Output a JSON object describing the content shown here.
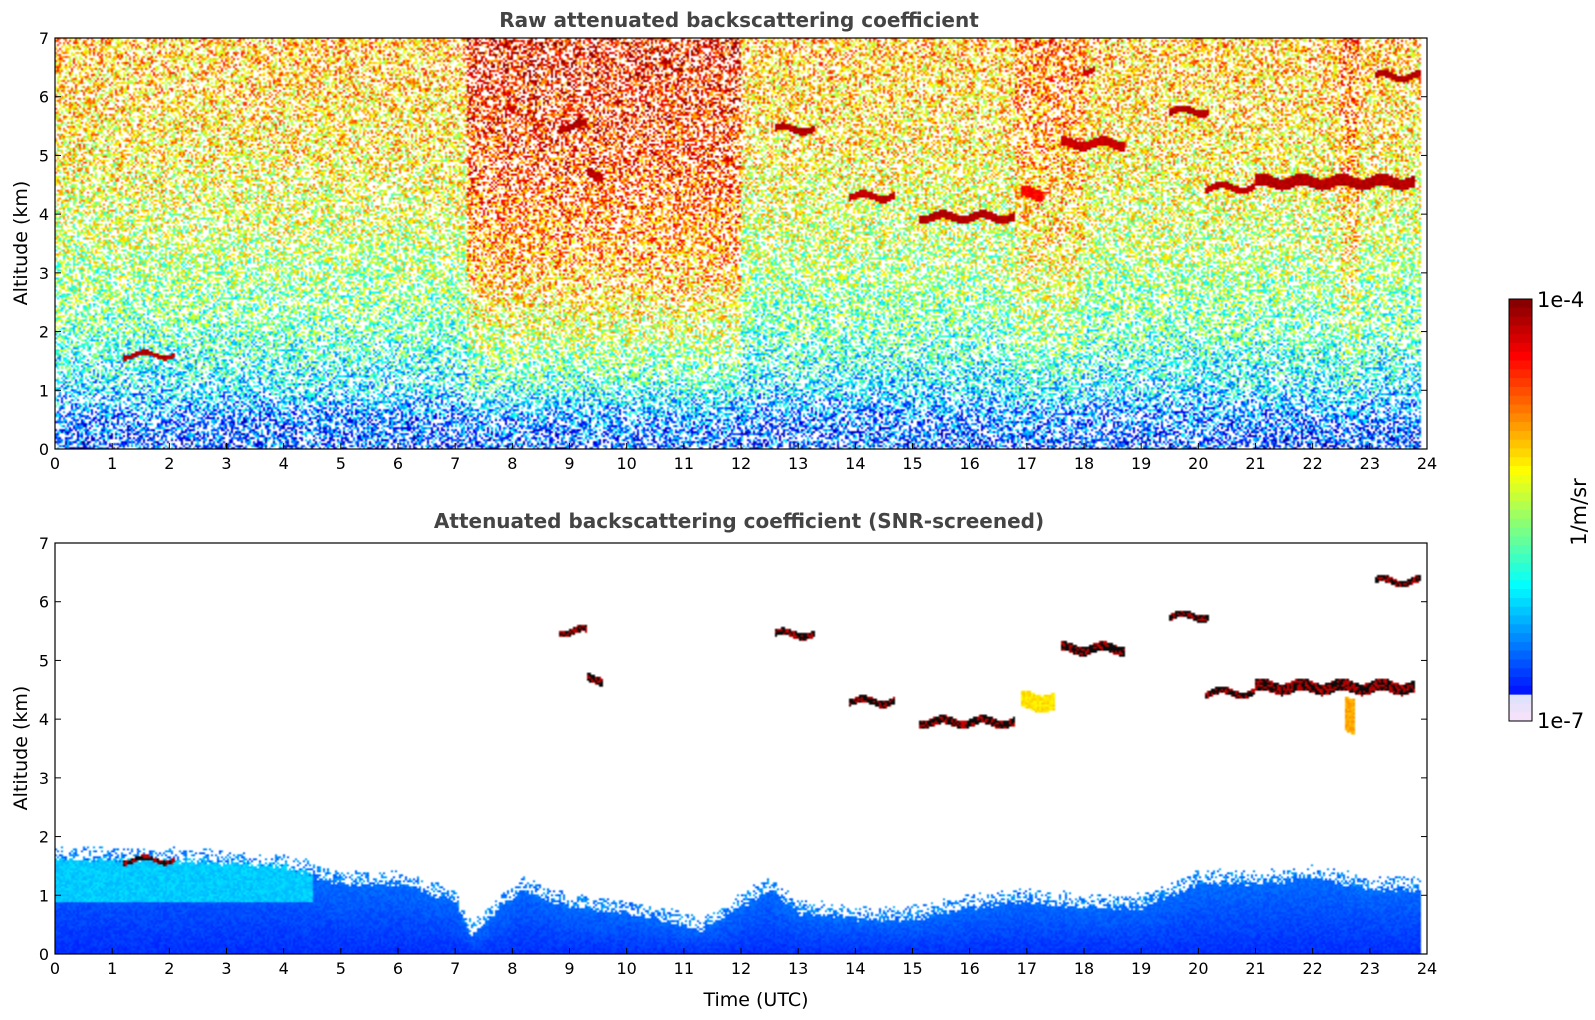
{
  "chart_data": [
    {
      "type": "heatmap",
      "title": "Raw attenuated backscattering coefficient",
      "xlabel": "",
      "ylabel": "Altitude (km)",
      "xlim": [
        0,
        24
      ],
      "ylim": [
        0,
        7
      ],
      "x_ticks": [
        "0",
        "1",
        "2",
        "3",
        "4",
        "5",
        "6",
        "7",
        "8",
        "9",
        "10",
        "11",
        "12",
        "13",
        "14",
        "15",
        "16",
        "17",
        "18",
        "19",
        "20",
        "21",
        "22",
        "23",
        "24"
      ],
      "y_ticks": [
        "0",
        "1",
        "2",
        "3",
        "4",
        "5",
        "6",
        "7"
      ],
      "grid": false,
      "background_level_by_altitude_km": [
        {
          "alt": 0.0,
          "level": 0.18
        },
        {
          "alt": 0.5,
          "level": 0.22
        },
        {
          "alt": 1.0,
          "level": 0.34
        },
        {
          "alt": 2.0,
          "level": 0.46
        },
        {
          "alt": 3.5,
          "level": 0.56
        },
        {
          "alt": 5.0,
          "level": 0.64
        },
        {
          "alt": 7.0,
          "level": 0.7
        }
      ],
      "layers": [
        {
          "t0": 1.2,
          "t1": 2.1,
          "alt": 1.6,
          "thick": 0.08,
          "level": 0.97
        },
        {
          "t0": 7.9,
          "t1": 8.05,
          "alt": 5.78,
          "thick": 0.12,
          "level": 0.95
        },
        {
          "t0": 8.8,
          "t1": 9.3,
          "alt": 5.5,
          "thick": 0.12,
          "level": 0.97
        },
        {
          "t0": 9.3,
          "t1": 9.6,
          "alt": 4.68,
          "thick": 0.14,
          "level": 0.97
        },
        {
          "t0": 12.6,
          "t1": 13.3,
          "alt": 5.45,
          "thick": 0.12,
          "level": 0.97
        },
        {
          "t0": 13.9,
          "t1": 14.7,
          "alt": 4.3,
          "thick": 0.12,
          "level": 0.96
        },
        {
          "t0": 15.1,
          "t1": 16.8,
          "alt": 3.95,
          "thick": 0.14,
          "level": 0.97
        },
        {
          "t0": 16.9,
          "t1": 17.3,
          "alt": 4.35,
          "thick": 0.2,
          "level": 0.9
        },
        {
          "t0": 17.6,
          "t1": 18.7,
          "alt": 5.2,
          "thick": 0.16,
          "level": 0.95
        },
        {
          "t0": 19.5,
          "t1": 20.2,
          "alt": 5.75,
          "thick": 0.12,
          "level": 0.97
        },
        {
          "t0": 20.1,
          "t1": 21.0,
          "alt": 4.45,
          "thick": 0.12,
          "level": 0.96
        },
        {
          "t0": 21.0,
          "t1": 23.8,
          "alt": 4.55,
          "thick": 0.2,
          "level": 0.97
        },
        {
          "t0": 23.1,
          "t1": 23.9,
          "alt": 6.35,
          "thick": 0.12,
          "level": 0.97
        },
        {
          "t0": 18.0,
          "t1": 18.2,
          "alt": 6.45,
          "thick": 0.1,
          "level": 0.95
        }
      ],
      "hazy_columns": [
        {
          "t0": 7.2,
          "t1": 12.0,
          "boost": 0.18
        },
        {
          "t0": 16.8,
          "t1": 18.0,
          "boost": 0.08
        },
        {
          "t0": 22.5,
          "t1": 22.8,
          "boost": 0.1
        }
      ]
    },
    {
      "type": "heatmap",
      "title": "Attenuated backscattering coefficient (SNR-screened)",
      "xlabel": "Time (UTC)",
      "ylabel": "Altitude (km)",
      "xlim": [
        0,
        24
      ],
      "ylim": [
        0,
        7
      ],
      "x_ticks": [
        "0",
        "1",
        "2",
        "3",
        "4",
        "5",
        "6",
        "7",
        "8",
        "9",
        "10",
        "11",
        "12",
        "13",
        "14",
        "15",
        "16",
        "17",
        "18",
        "19",
        "20",
        "21",
        "22",
        "23",
        "24"
      ],
      "y_ticks": [
        "0",
        "1",
        "2",
        "3",
        "4",
        "5",
        "6",
        "7"
      ],
      "grid": false,
      "boundary_layer_top_km": [
        {
          "t": 0.0,
          "top": 1.6
        },
        {
          "t": 2.0,
          "top": 1.6
        },
        {
          "t": 4.0,
          "top": 1.5
        },
        {
          "t": 5.0,
          "top": 1.2
        },
        {
          "t": 6.0,
          "top": 1.2
        },
        {
          "t": 7.0,
          "top": 0.9
        },
        {
          "t": 7.3,
          "top": 0.3
        },
        {
          "t": 7.8,
          "top": 0.8
        },
        {
          "t": 8.2,
          "top": 1.1
        },
        {
          "t": 9.0,
          "top": 0.8
        },
        {
          "t": 10.0,
          "top": 0.7
        },
        {
          "t": 11.0,
          "top": 0.5
        },
        {
          "t": 11.3,
          "top": 0.4
        },
        {
          "t": 12.0,
          "top": 0.8
        },
        {
          "t": 12.5,
          "top": 1.1
        },
        {
          "t": 13.0,
          "top": 0.7
        },
        {
          "t": 14.0,
          "top": 0.6
        },
        {
          "t": 15.0,
          "top": 0.6
        },
        {
          "t": 16.0,
          "top": 0.8
        },
        {
          "t": 17.0,
          "top": 0.9
        },
        {
          "t": 18.0,
          "top": 0.8
        },
        {
          "t": 19.0,
          "top": 0.8
        },
        {
          "t": 20.0,
          "top": 1.2
        },
        {
          "t": 21.0,
          "top": 1.2
        },
        {
          "t": 22.0,
          "top": 1.3
        },
        {
          "t": 23.0,
          "top": 1.1
        },
        {
          "t": 23.9,
          "top": 1.1
        }
      ],
      "layers": [
        {
          "t0": 1.2,
          "t1": 2.1,
          "alt": 1.6,
          "thick": 0.08
        },
        {
          "t0": 8.8,
          "t1": 9.3,
          "alt": 5.5,
          "thick": 0.12
        },
        {
          "t0": 9.3,
          "t1": 9.6,
          "alt": 4.68,
          "thick": 0.14
        },
        {
          "t0": 12.6,
          "t1": 13.3,
          "alt": 5.45,
          "thick": 0.12
        },
        {
          "t0": 13.9,
          "t1": 14.7,
          "alt": 4.3,
          "thick": 0.12
        },
        {
          "t0": 15.1,
          "t1": 16.8,
          "alt": 3.95,
          "thick": 0.14
        },
        {
          "t0": 16.9,
          "t1": 17.5,
          "alt": 4.3,
          "thick": 0.3
        },
        {
          "t0": 17.6,
          "t1": 18.7,
          "alt": 5.2,
          "thick": 0.16
        },
        {
          "t0": 19.5,
          "t1": 20.2,
          "alt": 5.75,
          "thick": 0.12
        },
        {
          "t0": 20.1,
          "t1": 21.0,
          "alt": 4.45,
          "thick": 0.12
        },
        {
          "t0": 21.0,
          "t1": 23.8,
          "alt": 4.55,
          "thick": 0.2
        },
        {
          "t0": 23.1,
          "t1": 23.9,
          "alt": 6.35,
          "thick": 0.12
        },
        {
          "t0": 22.55,
          "t1": 22.75,
          "alt": 4.05,
          "thick": 0.6
        }
      ]
    }
  ],
  "colorbar": {
    "max_label": "1e-4",
    "min_label": "1e-7",
    "unit_label": "1/m/sr"
  }
}
